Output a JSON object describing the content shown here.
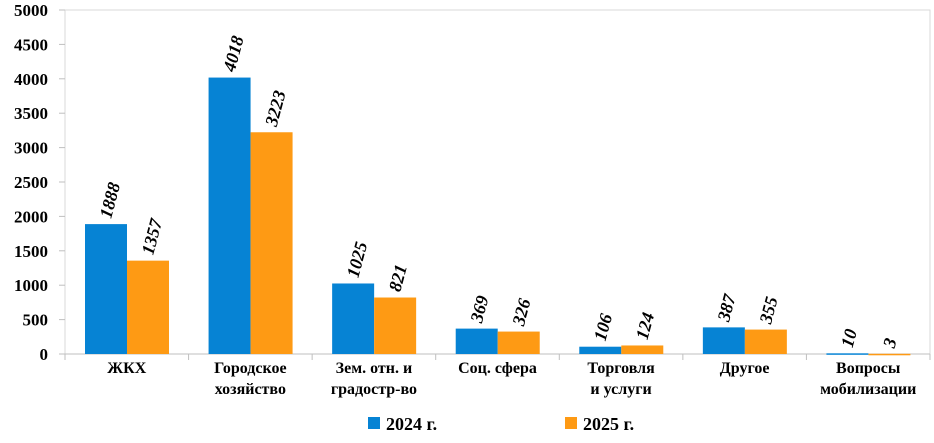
{
  "chart_data": {
    "type": "bar",
    "categories": [
      [
        "ЖКХ"
      ],
      [
        "Городское",
        "хозяйство"
      ],
      [
        "Зем. отн. и",
        "градостр-во"
      ],
      [
        "Соц. сфера"
      ],
      [
        "Торговля",
        "и услуги"
      ],
      [
        "Другое"
      ],
      [
        "Вопросы",
        "мобилизации"
      ]
    ],
    "series": [
      {
        "name": "2024 г.",
        "color": "#0683d4",
        "values": [
          1888,
          4018,
          1025,
          369,
          106,
          387,
          10
        ]
      },
      {
        "name": "2025 г.",
        "color": "#fe9a14",
        "values": [
          1357,
          3223,
          821,
          326,
          124,
          355,
          3
        ]
      }
    ],
    "ylim": [
      0,
      5000
    ],
    "yticks": [
      0,
      500,
      1000,
      1500,
      2000,
      2500,
      3000,
      3500,
      4000,
      4500,
      5000
    ],
    "grid": false,
    "legend": "bottom",
    "data_labels": "rotated, above bars"
  }
}
